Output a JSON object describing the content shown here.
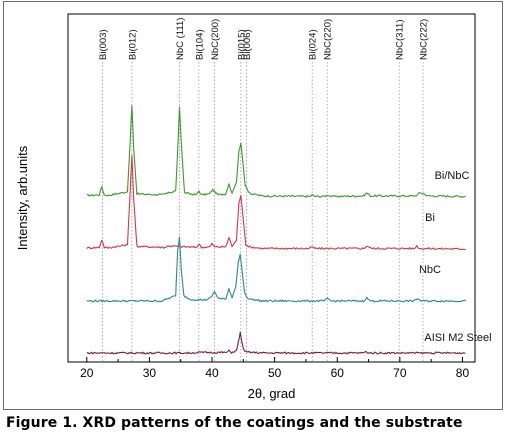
{
  "caption": "Figure 1. XRD patterns of the coatings and the substrate",
  "chart_data": {
    "type": "line",
    "xlabel": "2θ, grad",
    "ylabel": "Intensity, arb.units",
    "xlim": [
      17,
      82
    ],
    "xticks": [
      20,
      30,
      40,
      50,
      60,
      70,
      80
    ],
    "y_ticks_shown": false,
    "grid": false,
    "reference_lines": [
      {
        "label": "Bi(003)",
        "x": 22.5
      },
      {
        "label": "Bi(012)",
        "x": 27.2
      },
      {
        "label": "NbC (111)",
        "x": 34.8
      },
      {
        "label": "Bi(104)",
        "x": 37.9
      },
      {
        "label": "NbC(200)",
        "x": 40.4
      },
      {
        "label": "Bi(015)",
        "x": 44.6
      },
      {
        "label": "Bi(006)",
        "x": 45.5
      },
      {
        "label": "Bi(024)",
        "x": 56.0
      },
      {
        "label": "NbC(220)",
        "x": 58.4
      },
      {
        "label": "NbC(311)",
        "x": 69.9
      },
      {
        "label": "NbC(222)",
        "x": 73.7
      }
    ],
    "series": [
      {
        "name": "Bi/NbC",
        "color": "#3a9a2a",
        "baseline": 0,
        "offset": 3.0,
        "x": [
          20,
          22.0,
          22.4,
          22.8,
          23.4,
          26.5,
          26.9,
          27.2,
          27.5,
          28.0,
          32.0,
          34.2,
          34.6,
          34.8,
          35.1,
          35.6,
          37.5,
          37.9,
          38.3,
          39.6,
          40.1,
          40.6,
          41.0,
          42.2,
          42.7,
          43.2,
          43.9,
          44.3,
          44.6,
          44.9,
          45.3,
          45.7,
          46.3,
          48.0,
          55.6,
          56.0,
          56.4,
          58.0,
          58.5,
          59.0,
          64.2,
          64.7,
          65.3,
          72.5,
          73.2,
          73.8,
          74.5,
          80.5
        ],
        "y": [
          0.05,
          0.06,
          0.22,
          0.06,
          0.05,
          0.12,
          1.02,
          1.78,
          0.95,
          0.08,
          0.06,
          0.14,
          1.15,
          1.75,
          1.05,
          0.1,
          0.06,
          0.14,
          0.06,
          0.08,
          0.16,
          0.1,
          0.06,
          0.08,
          0.28,
          0.09,
          0.3,
          0.9,
          1.06,
          0.72,
          0.25,
          0.14,
          0.08,
          0.04,
          0.03,
          0.06,
          0.03,
          0.03,
          0.06,
          0.03,
          0.04,
          0.1,
          0.04,
          0.04,
          0.1,
          0.08,
          0.04,
          0.03
        ]
      },
      {
        "name": "Bi",
        "color": "#d9344a",
        "baseline": 0,
        "offset": 2.0,
        "x": [
          20,
          22.0,
          22.4,
          22.8,
          23.4,
          26.5,
          26.9,
          27.2,
          27.5,
          28.0,
          32.5,
          33.0,
          37.5,
          37.9,
          38.3,
          39.6,
          40.0,
          40.4,
          42.2,
          42.7,
          43.2,
          43.9,
          44.3,
          44.6,
          44.9,
          45.4,
          46.0,
          48.0,
          55.6,
          56.0,
          56.4,
          64.2,
          64.8,
          65.4,
          72.3,
          72.7,
          73.1,
          80.5
        ],
        "y": [
          0.04,
          0.05,
          0.2,
          0.05,
          0.04,
          0.1,
          1.05,
          1.82,
          0.98,
          0.07,
          0.05,
          0.08,
          0.05,
          0.12,
          0.05,
          0.06,
          0.12,
          0.06,
          0.06,
          0.24,
          0.07,
          0.18,
          0.92,
          1.05,
          0.7,
          0.1,
          0.06,
          0.03,
          0.03,
          0.06,
          0.03,
          0.03,
          0.08,
          0.03,
          0.03,
          0.08,
          0.03,
          0.02
        ]
      },
      {
        "name": "NbC",
        "color": "#2a8a8a",
        "baseline": 0,
        "offset": 1.0,
        "x": [
          20,
          32.0,
          34.2,
          34.5,
          34.8,
          35.1,
          35.5,
          36.5,
          39.0,
          39.8,
          40.4,
          41.0,
          42.2,
          42.7,
          43.2,
          43.8,
          44.2,
          44.5,
          44.8,
          45.2,
          45.8,
          48.0,
          57.8,
          58.4,
          59.0,
          64.2,
          64.7,
          65.3,
          72.3,
          72.8,
          73.4,
          80.5
        ],
        "y": [
          0.02,
          0.02,
          0.12,
          0.96,
          1.25,
          0.62,
          0.12,
          0.05,
          0.04,
          0.08,
          0.2,
          0.07,
          0.05,
          0.26,
          0.08,
          0.3,
          0.78,
          0.92,
          0.6,
          0.18,
          0.06,
          0.02,
          0.02,
          0.06,
          0.02,
          0.02,
          0.08,
          0.02,
          0.02,
          0.07,
          0.02,
          0.02
        ]
      },
      {
        "name": "AISI M2 Steel",
        "color": "#7a1e3a",
        "baseline": 0,
        "offset": 0.0,
        "x": [
          20,
          36.0,
          38.0,
          40.0,
          42.3,
          42.7,
          43.1,
          43.9,
          44.2,
          44.5,
          44.8,
          45.2,
          48.0,
          64.0,
          64.6,
          65.2,
          80.5
        ],
        "y": [
          0.02,
          0.02,
          0.03,
          0.03,
          0.03,
          0.06,
          0.03,
          0.06,
          0.22,
          0.42,
          0.2,
          0.04,
          0.02,
          0.02,
          0.04,
          0.02,
          0.02
        ]
      }
    ]
  }
}
